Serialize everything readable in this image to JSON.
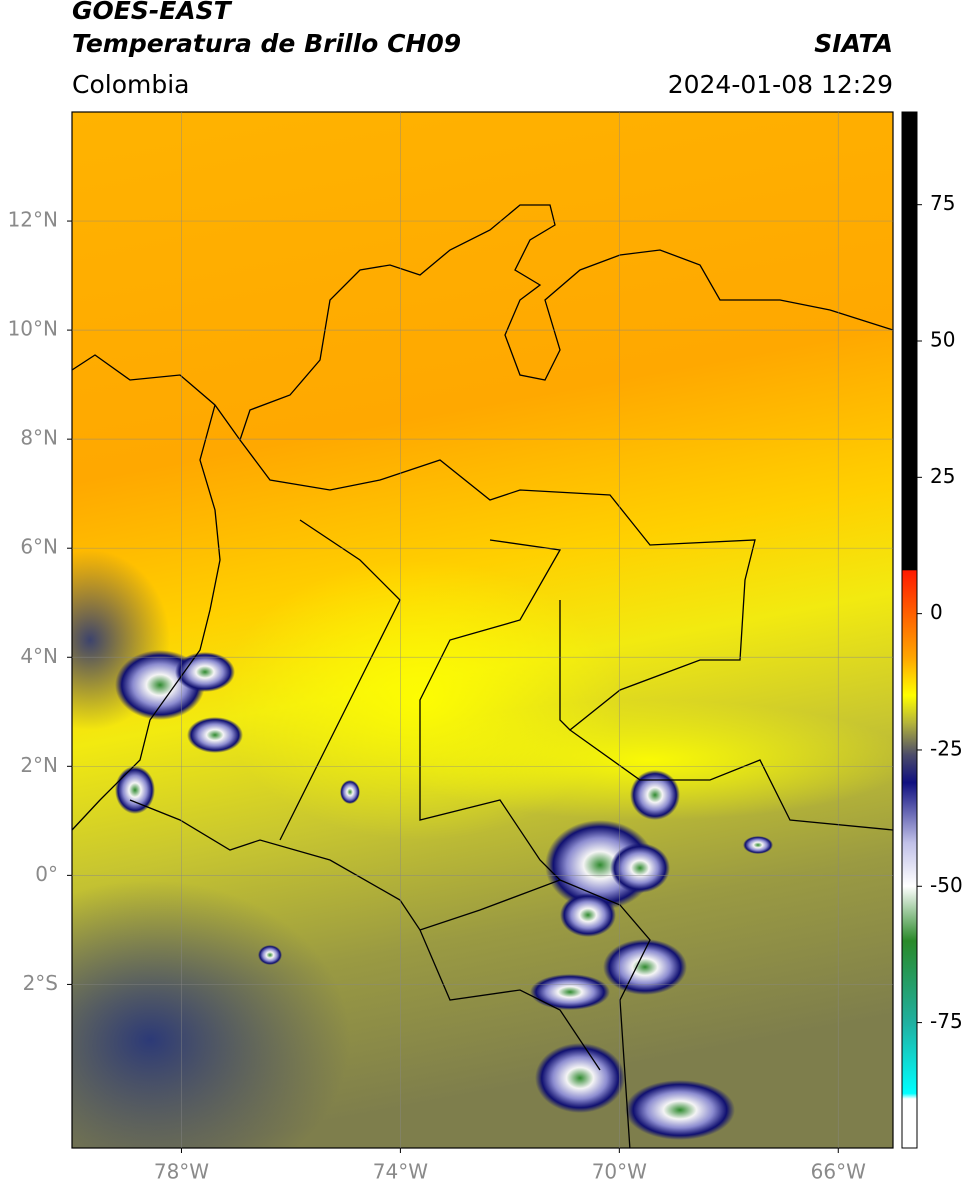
{
  "header": {
    "satellite": "GOES-EAST",
    "title": "Temperatura de Brillo CH09",
    "source": "SIATA",
    "region": "Colombia",
    "datetime": "2024-01-08 12:29"
  },
  "map": {
    "lonlim": [
      -80,
      -65
    ],
    "latlim": [
      -5,
      14
    ],
    "lon_ticks": [
      {
        "value": -78,
        "label": "78°W"
      },
      {
        "value": -74,
        "label": "74°W"
      },
      {
        "value": -70,
        "label": "70°W"
      },
      {
        "value": -66,
        "label": "66°W"
      }
    ],
    "lat_ticks": [
      {
        "value": 12,
        "label": "12°N"
      },
      {
        "value": 10,
        "label": "10°N"
      },
      {
        "value": 8,
        "label": "8°N"
      },
      {
        "value": 6,
        "label": "6°N"
      },
      {
        "value": 4,
        "label": "4°N"
      },
      {
        "value": 2,
        "label": "2°N"
      },
      {
        "value": 0,
        "label": "0°"
      },
      {
        "value": -2,
        "label": "2°S"
      }
    ],
    "grid": true
  },
  "colorbar": {
    "lim": [
      -98,
      92
    ],
    "ticks": [
      75,
      50,
      25,
      0,
      -25,
      -50,
      -75
    ],
    "colormap": [
      {
        "value": 92,
        "color": "#000000"
      },
      {
        "value": 8,
        "color": "#000000"
      },
      {
        "value": 7.9,
        "color": "#ff1a00"
      },
      {
        "value": 0,
        "color": "#ff6000"
      },
      {
        "value": -8,
        "color": "#ffa500"
      },
      {
        "value": -15,
        "color": "#ffff00"
      },
      {
        "value": -20,
        "color": "#b5b53a"
      },
      {
        "value": -26,
        "color": "#4a4a6a"
      },
      {
        "value": -31,
        "color": "#101080"
      },
      {
        "value": -42,
        "color": "#c0c0e8"
      },
      {
        "value": -50,
        "color": "#ffffff"
      },
      {
        "value": -60,
        "color": "#2a8a2a"
      },
      {
        "value": -75,
        "color": "#20b0a0"
      },
      {
        "value": -88,
        "color": "#00ffff"
      },
      {
        "value": -89,
        "color": "#ffffff"
      },
      {
        "value": -98,
        "color": "#ffffff"
      }
    ]
  }
}
